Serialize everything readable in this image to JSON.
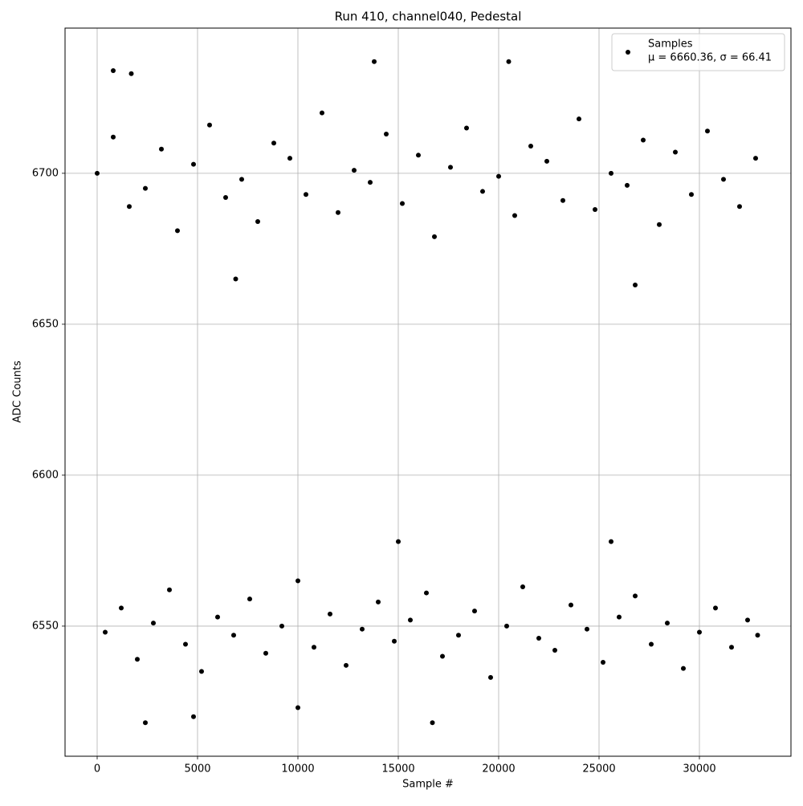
{
  "chart_data": {
    "type": "scatter",
    "title": "Run 410, channel040, Pedestal",
    "x_label": "Sample #",
    "y_label": "ADC Counts",
    "legend_detail": "μ = 6660.36, σ = 66.41",
    "legend_position": "upper right",
    "grid": true,
    "xlim": [
      -1600,
      34560
    ],
    "ylim": [
      6506.9,
      6748.1
    ],
    "xticks": [
      0,
      5000,
      10000,
      15000,
      20000,
      25000,
      30000
    ],
    "yticks": [
      6550,
      6600,
      6650,
      6700
    ],
    "series": [
      {
        "name": "Samples",
        "color": "#000000",
        "x": [
          0,
          800,
          1600,
          2400,
          3200,
          4000,
          4800,
          5600,
          6400,
          7200,
          8000,
          8800,
          9600,
          10400,
          11200,
          12000,
          12800,
          13600,
          14400,
          15200,
          16000,
          16800,
          17600,
          18400,
          19200,
          20000,
          20800,
          21600,
          22400,
          23200,
          24000,
          24800,
          25600,
          26400,
          27200,
          28000,
          28800,
          29600,
          30400,
          31200,
          32000,
          32800,
          400,
          1200,
          2000,
          2800,
          3600,
          4400,
          5200,
          6000,
          6800,
          7600,
          8400,
          9200,
          10000,
          10800,
          11600,
          12400,
          13200,
          14000,
          14800,
          15600,
          16400,
          17200,
          18000,
          18800,
          19600,
          20400,
          21200,
          22000,
          22800,
          23600,
          24400,
          25200,
          26000,
          26800,
          27600,
          28400,
          29200,
          30000,
          30800,
          31600,
          32400,
          32900,
          800,
          1700,
          13800,
          20500,
          6900,
          26800,
          15000,
          25600,
          2400,
          16700,
          4800,
          10000
        ],
        "values": [
          6700,
          6712,
          6689,
          6695,
          6708,
          6681,
          6703,
          6716,
          6692,
          6698,
          6684,
          6710,
          6705,
          6693,
          6720,
          6687,
          6701,
          6697,
          6713,
          6690,
          6706,
          6679,
          6702,
          6715,
          6694,
          6699,
          6686,
          6709,
          6704,
          6691,
          6718,
          6688,
          6700,
          6696,
          6711,
          6683,
          6707,
          6693,
          6714,
          6698,
          6689,
          6705,
          6548,
          6556,
          6539,
          6551,
          6562,
          6544,
          6535,
          6553,
          6547,
          6559,
          6541,
          6550,
          6565,
          6543,
          6554,
          6537,
          6549,
          6558,
          6545,
          6552,
          6561,
          6540,
          6547,
          6555,
          6533,
          6550,
          6563,
          6546,
          6542,
          6557,
          6549,
          6538,
          6553,
          6560,
          6544,
          6551,
          6536,
          6548,
          6556,
          6543,
          6552,
          6547,
          6734,
          6733,
          6737,
          6737,
          6665,
          6663,
          6578,
          6578,
          6518,
          6518,
          6520,
          6523
        ]
      }
    ]
  }
}
